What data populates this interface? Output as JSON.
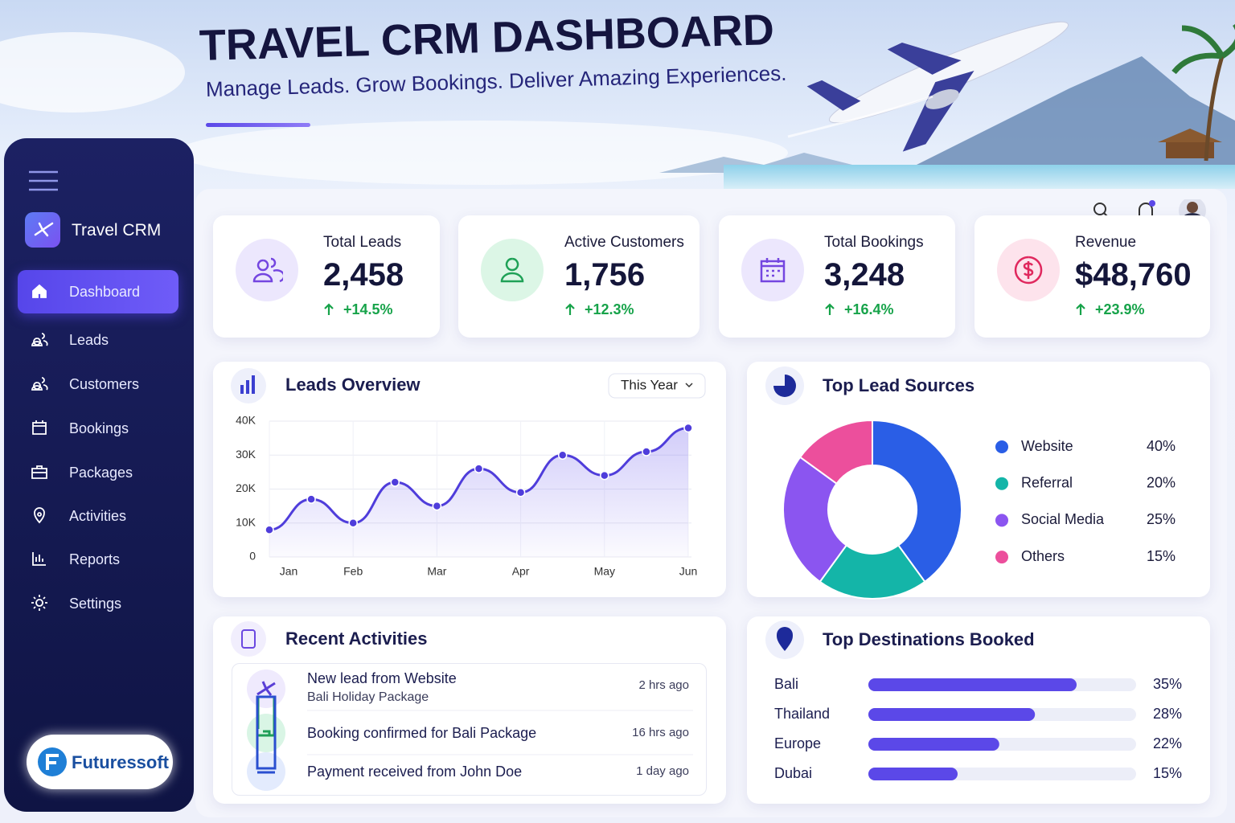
{
  "header": {
    "title": "TRAVEL CRM DASHBOARD",
    "subtitle": "Manage Leads. Grow Bookings. Deliver Amazing Experiences."
  },
  "sidebar": {
    "brand": "Travel CRM",
    "nav": [
      "Dashboard",
      "Leads",
      "Customers",
      "Bookings",
      "Packages",
      "Activities",
      "Reports",
      "Settings"
    ],
    "logo": "Futuressoft"
  },
  "stats": [
    {
      "label": "Total Leads",
      "value": "2,458",
      "change": "+14.5%"
    },
    {
      "label": "Active Customers",
      "value": "1,756",
      "change": "+12.3%"
    },
    {
      "label": "Total Bookings",
      "value": "3,248",
      "change": "+16.4%"
    },
    {
      "label": "Revenue",
      "value": "$48,760",
      "change": "+23.9%"
    }
  ],
  "chart_data": [
    {
      "type": "line",
      "title": "Leads Overview",
      "filter": "This Year",
      "categories": [
        "Jan",
        null,
        "Feb",
        null,
        "Mar",
        null,
        "Apr",
        null,
        "May",
        null,
        "Jun"
      ],
      "values": [
        8000,
        17000,
        10000,
        22000,
        15000,
        26000,
        19000,
        30000,
        24000,
        31000,
        38000
      ],
      "color": "#4f3ddb",
      "ylim": [
        0,
        40000
      ],
      "yticks": [
        0,
        {
          "value": 10000,
          "label": "10K"
        },
        {
          "value": 20000,
          "label": "20K"
        },
        {
          "value": 30000,
          "label": "30K"
        },
        {
          "value": 40000,
          "label": "40K"
        }
      ],
      "grid": true
    },
    {
      "type": "pie",
      "title": "Top Lead Sources",
      "categories": [
        "Website",
        "Referral",
        "Social Media",
        "Others"
      ],
      "values": [
        40,
        20,
        25,
        15
      ],
      "value_labels": [
        "40%",
        "20%",
        "25%",
        "15%"
      ],
      "colors": [
        "#2a5ee6",
        "#14b5a8",
        "#8b55f0",
        "#ec4f9c"
      ]
    },
    {
      "type": "bar",
      "title": "Top Destinations Booked",
      "orientation": "horizontal",
      "categories": [
        "Bali",
        "Thailand",
        "Europe",
        "Dubai"
      ],
      "values": [
        35,
        28,
        22,
        15
      ],
      "value_labels": [
        "35%",
        "28%",
        "22%",
        "15%"
      ],
      "color": "#5b48e8",
      "xlim": [
        0,
        45
      ]
    }
  ],
  "activities": {
    "title": "Recent Activities",
    "items": [
      {
        "title": "New lead from Website",
        "subtitle": "Bali Holiday Package",
        "time": "2 hrs ago"
      },
      {
        "title": "Booking confirmed for Bali Package",
        "time": "16 hrs ago"
      },
      {
        "title": "Payment received from John Doe",
        "time": "1 day ago"
      }
    ]
  }
}
